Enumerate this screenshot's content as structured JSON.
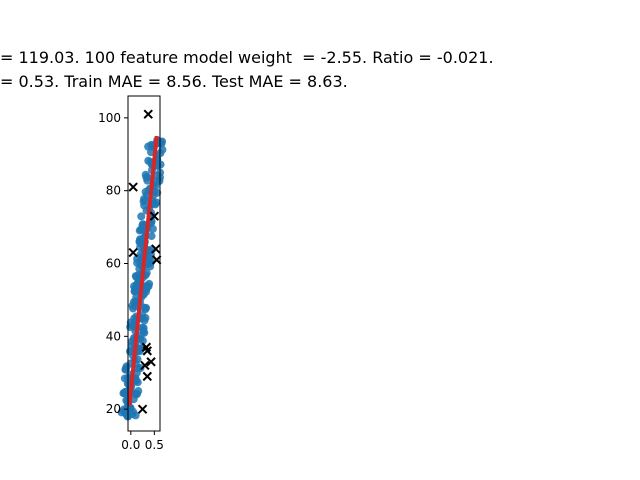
{
  "chart_data": {
    "type": "scatter",
    "title_lines": [
      "= 119.03. 100 feature model weight  = -2.55. Ratio = -0.021.",
      "= 0.53. Train MAE = 8.56. Test MAE = 8.63."
    ],
    "xlabel": "",
    "ylabel": "",
    "xlim": [
      -0.06,
      0.62
    ],
    "ylim": [
      14,
      106
    ],
    "x_ticks": [
      0.0,
      0.5
    ],
    "x_tick_labels": [
      "0.0",
      "0.5"
    ],
    "y_ticks": [
      20,
      40,
      60,
      80,
      100
    ],
    "y_tick_labels": [
      "20",
      "40",
      "60",
      "80",
      "100"
    ],
    "grid": false,
    "colors": {
      "train": "#1f77b4",
      "fit": "#d62728",
      "test": "#000000"
    },
    "fit_line": {
      "x": [
        -0.03,
        0.55
      ],
      "y": [
        21,
        95
      ]
    },
    "test_points": {
      "x": [
        0.37,
        0.05,
        0.5,
        0.05,
        0.53,
        0.55,
        0.33,
        0.35,
        0.43,
        0.3,
        0.35,
        0.25
      ],
      "y": [
        101,
        81,
        73,
        63,
        64,
        61,
        37,
        36,
        33,
        32,
        29,
        20
      ]
    }
  }
}
